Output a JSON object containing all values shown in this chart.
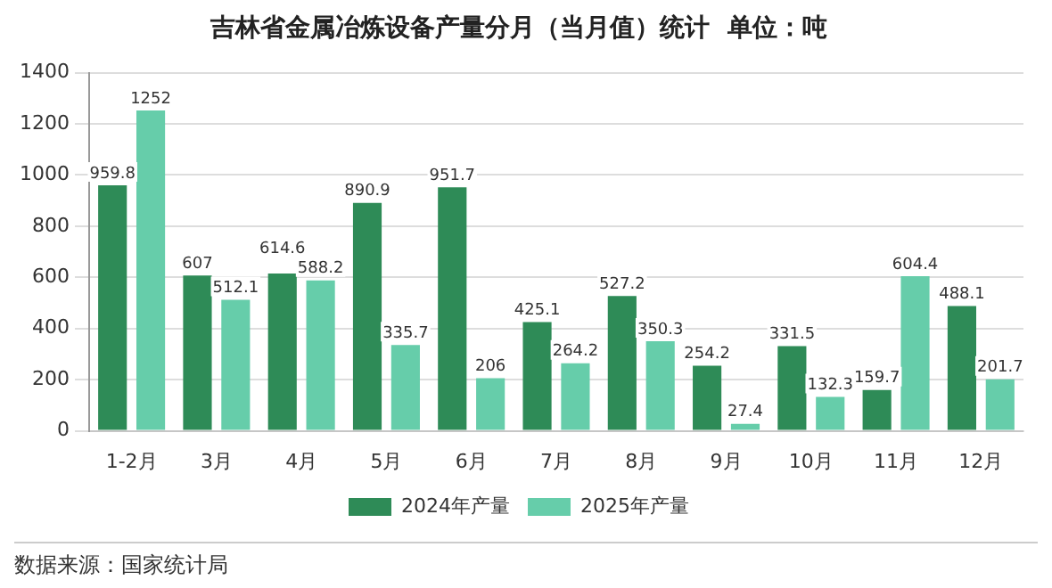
{
  "chart_data": {
    "type": "bar",
    "title": "吉林省金属冶炼设备产量分月（当月值）统计  单位：吨",
    "categories": [
      "1-2月",
      "3月",
      "4月",
      "5月",
      "6月",
      "7月",
      "8月",
      "9月",
      "10月",
      "11月",
      "12月"
    ],
    "series": [
      {
        "name": "2024年产量",
        "color": "#2e8b57",
        "values": [
          959.8,
          607,
          614.6,
          890.9,
          951.7,
          425.1,
          527.2,
          254.2,
          331.5,
          159.7,
          488.1
        ]
      },
      {
        "name": "2025年产量",
        "color": "#66cdaa",
        "values": [
          1252,
          512.1,
          588.2,
          335.7,
          206,
          264.2,
          350.3,
          27.4,
          132.3,
          604.4,
          201.7
        ]
      }
    ],
    "ylim": [
      0,
      1400
    ],
    "yticks": [
      0,
      200,
      400,
      600,
      800,
      1000,
      1200,
      1400
    ],
    "grid": "y",
    "legend": "bottom",
    "data_labels": true,
    "annotations": [
      "数据来源：国家统计局"
    ]
  }
}
